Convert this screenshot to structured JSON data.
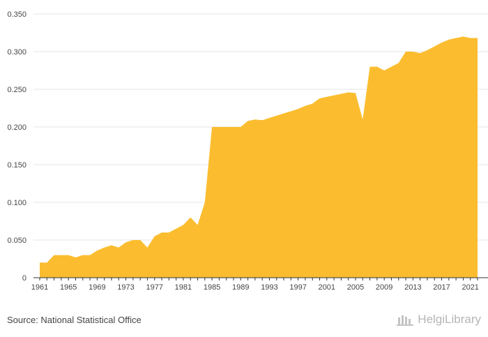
{
  "chart_data": {
    "type": "area",
    "title": "",
    "xlabel": "",
    "ylabel": "",
    "x": [
      1961,
      1962,
      1963,
      1964,
      1965,
      1966,
      1967,
      1968,
      1969,
      1970,
      1971,
      1972,
      1973,
      1974,
      1975,
      1976,
      1977,
      1978,
      1979,
      1980,
      1981,
      1982,
      1983,
      1984,
      1985,
      1986,
      1987,
      1988,
      1989,
      1990,
      1991,
      1992,
      1993,
      1994,
      1995,
      1996,
      1997,
      1998,
      1999,
      2000,
      2001,
      2002,
      2003,
      2004,
      2005,
      2006,
      2007,
      2008,
      2009,
      2010,
      2011,
      2012,
      2013,
      2014,
      2015,
      2016,
      2017,
      2018,
      2019,
      2020,
      2021,
      2022
    ],
    "values": [
      0.02,
      0.02,
      0.03,
      0.03,
      0.03,
      0.027,
      0.03,
      0.03,
      0.036,
      0.04,
      0.043,
      0.04,
      0.047,
      0.05,
      0.05,
      0.04,
      0.055,
      0.06,
      0.06,
      0.065,
      0.07,
      0.08,
      0.07,
      0.1,
      0.2,
      0.2,
      0.2,
      0.2,
      0.2,
      0.208,
      0.21,
      0.209,
      0.212,
      0.215,
      0.218,
      0.221,
      0.224,
      0.228,
      0.231,
      0.238,
      0.24,
      0.242,
      0.244,
      0.246,
      0.245,
      0.21,
      0.28,
      0.28,
      0.275,
      0.28,
      0.285,
      0.3,
      0.3,
      0.298,
      0.302,
      0.307,
      0.312,
      0.316,
      0.318,
      0.32,
      0.318,
      0.318
    ],
    "x_tick_labels": [
      "1961",
      "1965",
      "1969",
      "1973",
      "1977",
      "1981",
      "1985",
      "1989",
      "1993",
      "1997",
      "2001",
      "2005",
      "2009",
      "2013",
      "2017",
      "2021"
    ],
    "y_tick_labels": [
      "0",
      "0.050",
      "0.100",
      "0.150",
      "0.200",
      "0.250",
      "0.300",
      "0.350"
    ],
    "ylim": [
      0,
      0.35
    ],
    "xlim": [
      1961,
      2022
    ],
    "grid": "horizontal",
    "legend": "none",
    "fill_color": "#fbbd2f",
    "grid_color": "#e6e6e6",
    "axis_color": "#333333"
  },
  "footer": {
    "source": "Source: National Statistical Office",
    "brand": "HelgiLibrary",
    "brand_icon": "helgi-library-logo-icon"
  }
}
